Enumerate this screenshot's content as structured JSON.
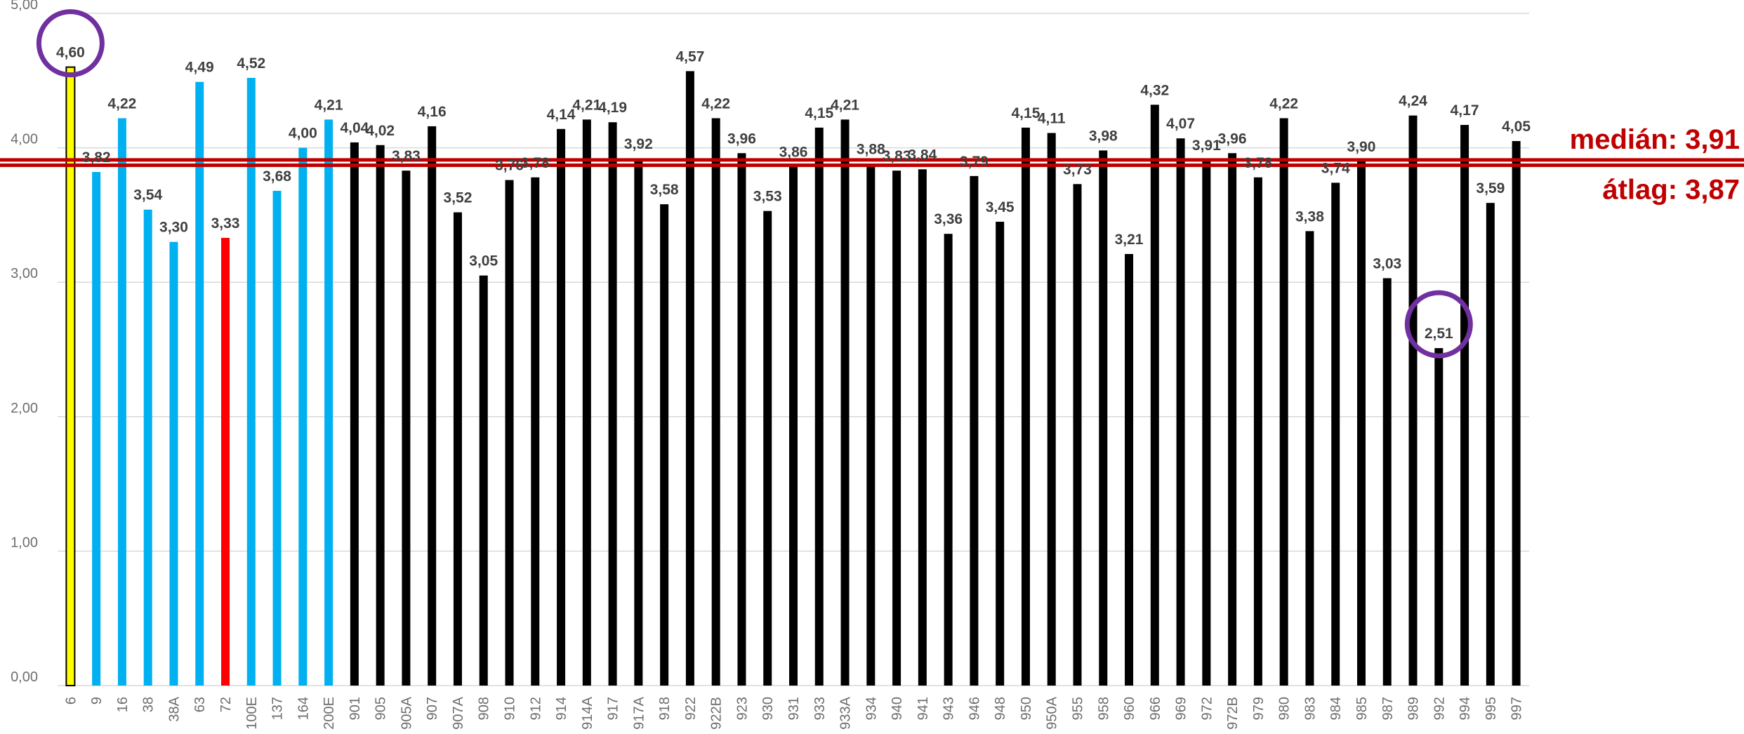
{
  "chart_data": {
    "type": "bar",
    "categories": [
      "6",
      "9",
      "16",
      "38",
      "38A",
      "63",
      "72",
      "100E",
      "137",
      "164",
      "200E",
      "901",
      "905",
      "905A",
      "907",
      "907A",
      "908",
      "910",
      "912",
      "914",
      "914A",
      "917",
      "917A",
      "918",
      "922",
      "922B",
      "923",
      "930",
      "931",
      "933",
      "933A",
      "934",
      "940",
      "941",
      "943",
      "946",
      "948",
      "950",
      "950A",
      "955",
      "958",
      "960",
      "966",
      "969",
      "972",
      "972B",
      "979",
      "980",
      "983",
      "984",
      "985",
      "987",
      "989",
      "992",
      "994",
      "995",
      "997"
    ],
    "values": [
      4.6,
      3.82,
      4.22,
      3.54,
      3.3,
      4.49,
      3.33,
      4.52,
      3.68,
      4.0,
      4.21,
      4.04,
      4.02,
      3.83,
      4.16,
      3.52,
      3.05,
      3.76,
      3.78,
      4.14,
      4.21,
      4.19,
      3.92,
      3.58,
      4.57,
      4.22,
      3.96,
      3.53,
      3.86,
      4.15,
      4.21,
      3.88,
      3.83,
      3.84,
      3.36,
      3.79,
      3.45,
      4.15,
      4.11,
      3.73,
      3.98,
      3.21,
      4.32,
      4.07,
      3.91,
      3.96,
      3.78,
      4.22,
      3.38,
      3.74,
      3.9,
      3.03,
      4.24,
      2.51,
      4.17,
      3.59,
      4.05
    ],
    "data_labels": [
      "4,60",
      "3,82",
      "4,22",
      "3,54",
      "3,30",
      "4,49",
      "3,33",
      "4,52",
      "3,68",
      "4,00",
      "4,21",
      "4,04",
      "4,02",
      "3,83",
      "4,16",
      "3,52",
      "3,05",
      "3,76",
      "3,78",
      "4,14",
      "4,21",
      "4,19",
      "3,92",
      "3,58",
      "4,57",
      "4,22",
      "3,96",
      "3,53",
      "3,86",
      "4,15",
      "4,21",
      "3,88",
      "3,83",
      "3,84",
      "3,36",
      "3,79",
      "3,45",
      "4,15",
      "4,11",
      "3,73",
      "3,98",
      "3,21",
      "4,32",
      "4,07",
      "3,91",
      "3,96",
      "3,78",
      "4,22",
      "3,38",
      "3,74",
      "3,90",
      "3,03",
      "4,24",
      "2,51",
      "4,17",
      "3,59",
      "4,05"
    ],
    "bar_colors": [
      "#ffff00",
      "#00b0f0",
      "#00b0f0",
      "#00b0f0",
      "#00b0f0",
      "#00b0f0",
      "#ff0000",
      "#00b0f0",
      "#00b0f0",
      "#00b0f0",
      "#00b0f0",
      "#000000",
      "#000000",
      "#000000",
      "#000000",
      "#000000",
      "#000000",
      "#000000",
      "#000000",
      "#000000",
      "#000000",
      "#000000",
      "#000000",
      "#000000",
      "#000000",
      "#000000",
      "#000000",
      "#000000",
      "#000000",
      "#000000",
      "#000000",
      "#000000",
      "#000000",
      "#000000",
      "#000000",
      "#000000",
      "#000000",
      "#000000",
      "#000000",
      "#000000",
      "#000000",
      "#000000",
      "#000000",
      "#000000",
      "#000000",
      "#000000",
      "#000000",
      "#000000",
      "#000000",
      "#000000",
      "#000000",
      "#000000",
      "#000000",
      "#000000",
      "#000000",
      "#000000",
      "#000000"
    ],
    "highlight_outline_color": "#000000",
    "y_ticks": [
      0,
      1,
      2,
      3,
      4,
      5
    ],
    "y_tick_labels": [
      "0,00",
      "1,00",
      "2,00",
      "3,00",
      "4,00",
      "5,00"
    ],
    "ylim": [
      0,
      5
    ],
    "grid": true,
    "grid_color": "#d9d9d9",
    "title": "",
    "xlabel": "",
    "ylabel": "",
    "reference_lines": [
      {
        "value": 3.91,
        "label": "medián: 3,91"
      },
      {
        "value": 3.87,
        "label": "átlag: 3,87"
      }
    ],
    "reference_color": "#c00000",
    "circled_categories": [
      "6",
      "992"
    ],
    "circle_color": "#7030a0"
  }
}
